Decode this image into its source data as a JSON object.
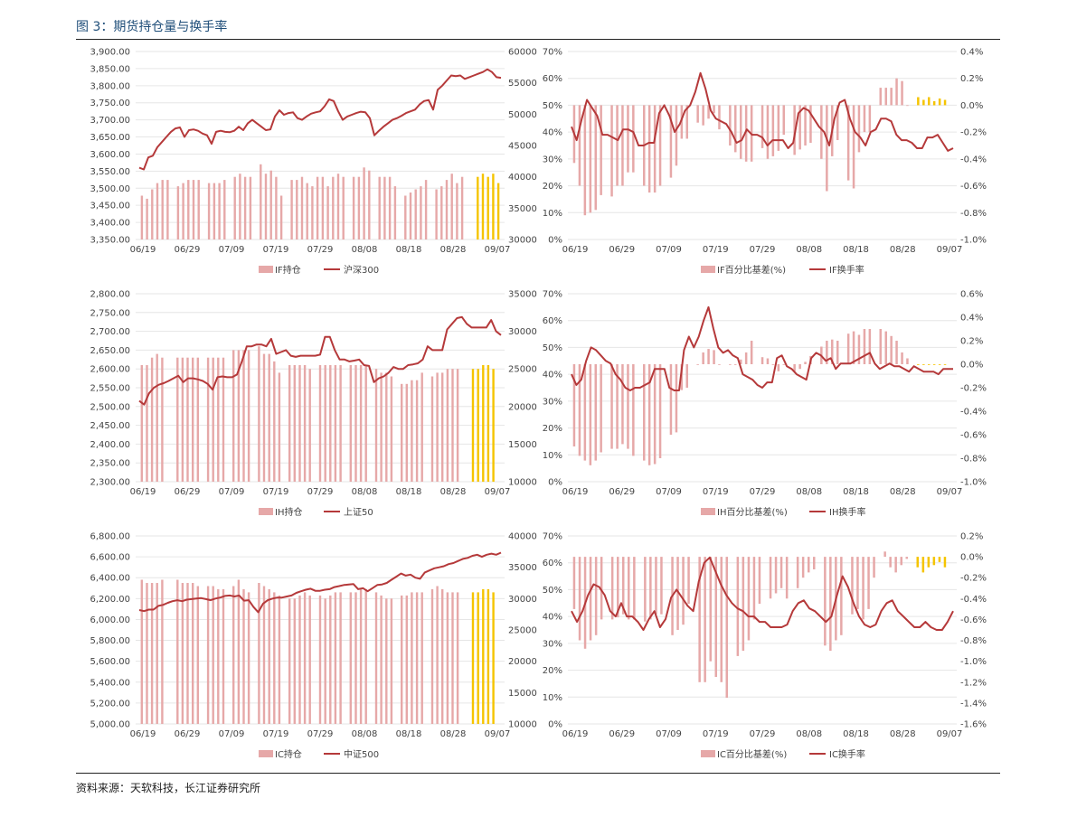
{
  "figure_title": "图 3：期货持仓量与换手率",
  "source": "资料来源：天软科技，长江证券研究所",
  "colors": {
    "bar": "#e6a8a8",
    "bar_recent": "#f5c400",
    "line": "#b5393a",
    "grid": "#e6e6e6",
    "axis_text": "#444444",
    "title": "#1f4e79"
  },
  "x_ticks": [
    "06/19",
    "06/29",
    "07/09",
    "07/19",
    "07/29",
    "08/08",
    "08/18",
    "08/28",
    "09/07"
  ],
  "chart_data": [
    {
      "type": "bar+line",
      "id": "if-oi",
      "left_axis": {
        "range": [
          3350,
          3900
        ],
        "ticks": [
          "3,350.00",
          "3,400.00",
          "3,450.00",
          "3,500.00",
          "3,550.00",
          "3,600.00",
          "3,650.00",
          "3,700.00",
          "3,750.00",
          "3,800.00",
          "3,850.00",
          "3,900.00"
        ]
      },
      "right_axis": {
        "range": [
          30000,
          60000
        ],
        "ticks": [
          "30000",
          "35000",
          "40000",
          "45000",
          "50000",
          "55000",
          "60000"
        ]
      },
      "legend": {
        "bar": "IF持仓",
        "line": "沪深300"
      },
      "bar_axis": "right",
      "line_axis": "left",
      "recent_count": 6,
      "bars": [
        37000,
        36500,
        38000,
        39000,
        39500,
        39500,
        null,
        38500,
        39000,
        39500,
        39500,
        39500,
        null,
        39000,
        39000,
        39000,
        39500,
        null,
        40000,
        40500,
        40000,
        40000,
        null,
        42000,
        40500,
        41000,
        40000,
        37000,
        null,
        39500,
        39500,
        40000,
        39000,
        38500,
        40000,
        40000,
        38500,
        40000,
        40500,
        40000,
        null,
        40000,
        40000,
        41500,
        41000,
        null,
        40000,
        40000,
        40000,
        38500,
        null,
        37000,
        37500,
        38000,
        38500,
        39500,
        null,
        38000,
        38500,
        39500,
        40500,
        39000,
        40000,
        null,
        null,
        40000,
        40500,
        40000,
        40500,
        39000
      ],
      "line": [
        3560,
        3555,
        3590,
        3595,
        3620,
        3635,
        3650,
        3665,
        3675,
        3678,
        3650,
        3670,
        3672,
        3668,
        3660,
        3655,
        3630,
        3665,
        3668,
        3665,
        3664,
        3668,
        3680,
        3670,
        3690,
        3700,
        3690,
        3680,
        3670,
        3672,
        3710,
        3728,
        3715,
        3720,
        3722,
        3705,
        3700,
        3710,
        3718,
        3722,
        3725,
        3740,
        3760,
        3755,
        3725,
        3700,
        3710,
        3715,
        3720,
        3724,
        3722,
        3705,
        3655,
        3668,
        3680,
        3690,
        3700,
        3705,
        3712,
        3720,
        3725,
        3730,
        3745,
        3755,
        3758,
        3730,
        3788,
        3800,
        3815,
        3830,
        3828,
        3830,
        3820,
        3825,
        3830,
        3835,
        3840,
        3848,
        3840,
        3825,
        3823
      ]
    },
    {
      "type": "bar+line",
      "id": "if-basis",
      "left_axis": {
        "range": [
          0,
          70
        ],
        "ticks": [
          "0%",
          "10%",
          "20%",
          "30%",
          "40%",
          "50%",
          "60%",
          "70%"
        ]
      },
      "right_axis": {
        "range": [
          -1.0,
          0.4
        ],
        "ticks": [
          "-1.0%",
          "-0.8%",
          "-0.6%",
          "-0.4%",
          "-0.2%",
          "0.0%",
          "0.2%",
          "0.4%"
        ]
      },
      "legend": {
        "bar": "IF百分比基差(%)",
        "line": "IF换手率"
      },
      "bar_axis": "right",
      "line_axis": "left",
      "recent_count": 6,
      "bars": [
        -0.43,
        -0.6,
        -0.82,
        -0.8,
        -0.78,
        -0.67,
        null,
        -0.68,
        -0.6,
        -0.6,
        -0.5,
        -0.5,
        null,
        -0.6,
        -0.65,
        -0.65,
        -0.6,
        null,
        -0.54,
        -0.45,
        -0.25,
        -0.25,
        null,
        -0.13,
        -0.15,
        -0.1,
        -0.06,
        -0.18,
        null,
        -0.3,
        -0.35,
        -0.4,
        -0.42,
        -0.42,
        null,
        -0.32,
        -0.4,
        -0.38,
        -0.34,
        -0.22,
        null,
        -0.37,
        -0.33,
        -0.3,
        -0.28,
        null,
        -0.4,
        -0.64,
        -0.38,
        -0.26,
        null,
        -0.56,
        -0.62,
        -0.35,
        -0.2,
        -0.2,
        null,
        0.13,
        0.13,
        0.13,
        0.2,
        0.18,
        0.0,
        null,
        0.06,
        0.04,
        0.06,
        0.03,
        0.05,
        0.04,
        null
      ],
      "line": [
        42,
        37,
        45,
        52,
        49,
        46,
        39,
        39,
        38,
        37,
        41,
        41,
        40,
        35,
        35,
        36,
        36,
        47,
        50,
        46,
        40,
        43,
        48,
        50,
        55,
        62,
        56,
        48,
        45,
        44,
        43,
        40,
        36,
        37,
        41,
        39,
        39,
        38,
        35,
        37,
        37,
        37,
        34,
        36,
        47,
        49,
        48,
        45,
        42,
        40,
        35,
        45,
        51,
        52,
        45,
        40,
        38,
        35,
        40,
        41,
        45,
        45,
        44,
        39,
        37,
        37,
        36,
        34,
        34,
        38,
        38,
        39,
        36,
        33,
        34
      ],
      "line_is_percent_of_left": true
    },
    {
      "type": "bar+line",
      "id": "ih-oi",
      "left_axis": {
        "range": [
          2300,
          2800
        ],
        "ticks": [
          "2,300.00",
          "2,350.00",
          "2,400.00",
          "2,450.00",
          "2,500.00",
          "2,550.00",
          "2,600.00",
          "2,650.00",
          "2,700.00",
          "2,750.00",
          "2,800.00"
        ]
      },
      "right_axis": {
        "range": [
          10000,
          35000
        ],
        "ticks": [
          "10000",
          "15000",
          "20000",
          "25000",
          "30000",
          "35000"
        ]
      },
      "legend": {
        "bar": "IH持仓",
        "line": "上证50"
      },
      "bar_axis": "right",
      "line_axis": "left",
      "recent_count": 6,
      "bars": [
        25500,
        25500,
        26500,
        27000,
        26500,
        null,
        null,
        26500,
        26500,
        26500,
        26500,
        26500,
        null,
        26500,
        26500,
        26500,
        26500,
        null,
        27500,
        27500,
        27500,
        27500,
        null,
        28000,
        27000,
        27000,
        26000,
        24500,
        null,
        25500,
        25500,
        25500,
        25500,
        25000,
        null,
        25500,
        25500,
        25500,
        25500,
        25500,
        null,
        25500,
        25500,
        25500,
        25500,
        null,
        25000,
        24500,
        24500,
        24000,
        null,
        23000,
        23000,
        23500,
        23500,
        24500,
        null,
        24000,
        24500,
        24500,
        25000,
        25000,
        25000,
        null,
        null,
        25000,
        25000,
        25500,
        25500,
        25000,
        null
      ],
      "line": [
        2515,
        2505,
        2535,
        2550,
        2558,
        2562,
        2568,
        2575,
        2582,
        2565,
        2575,
        2575,
        2572,
        2568,
        2560,
        2545,
        2578,
        2580,
        2578,
        2578,
        2585,
        2620,
        2660,
        2660,
        2665,
        2665,
        2660,
        2680,
        2640,
        2645,
        2650,
        2635,
        2632,
        2635,
        2635,
        2635,
        2635,
        2638,
        2685,
        2685,
        2650,
        2625,
        2625,
        2620,
        2622,
        2625,
        2610,
        2608,
        2565,
        2575,
        2580,
        2590,
        2605,
        2600,
        2600,
        2610,
        2612,
        2615,
        2625,
        2660,
        2650,
        2650,
        2650,
        2705,
        2720,
        2735,
        2738,
        2720,
        2710,
        2710,
        2710,
        2710,
        2730,
        2700,
        2690
      ]
    },
    {
      "type": "bar+line",
      "id": "ih-basis",
      "left_axis": {
        "range": [
          0,
          70
        ],
        "ticks": [
          "0%",
          "10%",
          "20%",
          "30%",
          "40%",
          "50%",
          "60%",
          "70%"
        ]
      },
      "right_axis": {
        "range": [
          -1.0,
          0.6
        ],
        "ticks": [
          "-1.0%",
          "-0.8%",
          "-0.6%",
          "-0.4%",
          "-0.2%",
          "0.0%",
          "0.2%",
          "0.4%",
          "0.6%"
        ]
      },
      "legend": {
        "bar": "IH百分比基差(%)",
        "line": "IH换手率"
      },
      "bar_axis": "right",
      "line_axis": "left",
      "recent_count": 6,
      "bars": [
        -0.7,
        -0.78,
        -0.82,
        -0.86,
        -0.82,
        -0.75,
        null,
        -0.72,
        -0.72,
        -0.68,
        -0.72,
        -0.78,
        null,
        -0.82,
        -0.86,
        -0.85,
        -0.8,
        null,
        -0.6,
        -0.58,
        -0.22,
        -0.2,
        null,
        0.0,
        0.1,
        0.13,
        0.12,
        0.0,
        null,
        0.0,
        0.0,
        0.04,
        0.1,
        0.2,
        null,
        0.06,
        0.05,
        0.0,
        -0.06,
        0.0,
        null,
        -0.06,
        -0.04,
        0.02,
        0.07,
        null,
        0.15,
        0.2,
        0.21,
        0.2,
        null,
        0.26,
        0.28,
        0.25,
        0.3,
        0.3,
        null,
        0.3,
        0.28,
        0.24,
        0.2,
        0.1,
        0.05,
        null,
        0.0,
        0.0,
        0.0,
        0.0,
        0.0,
        0.0,
        null
      ],
      "line": [
        40,
        36,
        38,
        45,
        50,
        49,
        47,
        45,
        44,
        40,
        38,
        35,
        34,
        35,
        35,
        36,
        37,
        42,
        42,
        42,
        35,
        34,
        34,
        49,
        54,
        50,
        54,
        60,
        65,
        57,
        50,
        48,
        49,
        47,
        46,
        40,
        39,
        38,
        36,
        35,
        37,
        37,
        46,
        47,
        43,
        42,
        40,
        39,
        38,
        46,
        48,
        47,
        45,
        46,
        42,
        44,
        44,
        44,
        45,
        46,
        47,
        48,
        44,
        42,
        43,
        44,
        43,
        43,
        42,
        41,
        43,
        42,
        41,
        41,
        41,
        40,
        42,
        42,
        42
      ],
      "line_is_percent_of_left": true
    },
    {
      "type": "bar+line",
      "id": "ic-oi",
      "left_axis": {
        "range": [
          5000,
          6800
        ],
        "ticks": [
          "5,000.00",
          "5,200.00",
          "5,400.00",
          "5,600.00",
          "5,800.00",
          "6,000.00",
          "6,200.00",
          "6,400.00",
          "6,600.00",
          "6,800.00"
        ]
      },
      "right_axis": {
        "range": [
          10000,
          40000
        ],
        "ticks": [
          "10000",
          "15000",
          "20000",
          "25000",
          "30000",
          "35000",
          "40000"
        ]
      },
      "legend": {
        "bar": "IC持仓",
        "line": "中证500"
      },
      "bar_axis": "right",
      "line_axis": "left",
      "recent_count": 6,
      "bars": [
        33000,
        32500,
        32500,
        32500,
        33000,
        null,
        null,
        33000,
        32500,
        32500,
        32500,
        32000,
        null,
        32000,
        32000,
        31500,
        31500,
        null,
        32000,
        33000,
        31500,
        31000,
        null,
        32500,
        32000,
        31500,
        31000,
        30500,
        null,
        30000,
        30000,
        30500,
        31000,
        30500,
        null,
        30500,
        30000,
        30500,
        31000,
        31000,
        null,
        31000,
        31000,
        31500,
        31500,
        null,
        31000,
        30500,
        30000,
        30000,
        null,
        30500,
        30500,
        31000,
        31000,
        31000,
        null,
        31500,
        32000,
        31500,
        31000,
        31000,
        31000,
        null,
        null,
        31000,
        31000,
        31500,
        31500,
        31000,
        null
      ],
      "line": [
        6090,
        6080,
        6095,
        6095,
        6130,
        6140,
        6160,
        6175,
        6185,
        6175,
        6190,
        6195,
        6200,
        6205,
        6195,
        6185,
        6200,
        6210,
        6225,
        6230,
        6220,
        6230,
        6180,
        6185,
        6120,
        6070,
        6150,
        6185,
        6200,
        6210,
        6210,
        6220,
        6230,
        6255,
        6270,
        6285,
        6295,
        6275,
        6275,
        6285,
        6290,
        6310,
        6320,
        6330,
        6335,
        6340,
        6290,
        6300,
        6270,
        6300,
        6330,
        6335,
        6350,
        6380,
        6410,
        6440,
        6420,
        6430,
        6400,
        6390,
        6450,
        6470,
        6490,
        6500,
        6510,
        6530,
        6540,
        6560,
        6580,
        6590,
        6610,
        6620,
        6600,
        6620,
        6630,
        6620,
        6640
      ]
    },
    {
      "type": "bar+line",
      "id": "ic-basis",
      "left_axis": {
        "range": [
          0,
          70
        ],
        "ticks": [
          "0%",
          "10%",
          "20%",
          "30%",
          "40%",
          "50%",
          "60%",
          "70%"
        ]
      },
      "right_axis": {
        "range": [
          -1.6,
          0.2
        ],
        "ticks": [
          "-1.6%",
          "-1.4%",
          "-1.2%",
          "-1.0%",
          "-0.8%",
          "-0.6%",
          "-0.4%",
          "-0.2%",
          "0.0%",
          "0.2%"
        ]
      },
      "legend": {
        "bar": "IC百分比基差(%)",
        "line": "IC换手率"
      },
      "bar_axis": "right",
      "line_axis": "left",
      "recent_count": 6,
      "bars": [
        -0.5,
        -0.8,
        -0.88,
        -0.8,
        -0.75,
        -0.6,
        null,
        -0.6,
        -0.58,
        -0.55,
        -0.6,
        -0.6,
        null,
        -0.62,
        -0.6,
        -0.55,
        -0.55,
        null,
        -0.75,
        -0.7,
        -0.65,
        -0.45,
        null,
        -1.2,
        -1.2,
        -1.0,
        -1.15,
        -1.2,
        -1.35,
        null,
        -0.95,
        -0.9,
        -0.8,
        -0.6,
        -0.45,
        null,
        -0.4,
        -0.35,
        -0.3,
        -0.4,
        null,
        -0.3,
        -0.2,
        -0.15,
        -0.12,
        null,
        -0.85,
        -0.9,
        -0.8,
        -0.75,
        null,
        -0.55,
        -0.5,
        -0.6,
        -0.5,
        -0.2,
        null,
        0.05,
        -0.1,
        -0.15,
        -0.08,
        -0.02,
        null,
        -0.1,
        -0.15,
        -0.1,
        -0.08,
        -0.05,
        -0.1,
        null
      ],
      "line": [
        42,
        38,
        42,
        48,
        52,
        51,
        48,
        42,
        40,
        45,
        40,
        40,
        38,
        35,
        39,
        42,
        36,
        39,
        47,
        50,
        47,
        44,
        42,
        53,
        60,
        62,
        57,
        52,
        48,
        45,
        43,
        42,
        40,
        40,
        38,
        38,
        36,
        36,
        36,
        37,
        42,
        45,
        46,
        43,
        42,
        40,
        38,
        40,
        48,
        55,
        51,
        45,
        40,
        37,
        36,
        37,
        42,
        45,
        46,
        42,
        40,
        38,
        36,
        36,
        38,
        36,
        35,
        35,
        38,
        42
      ]
    }
  ]
}
